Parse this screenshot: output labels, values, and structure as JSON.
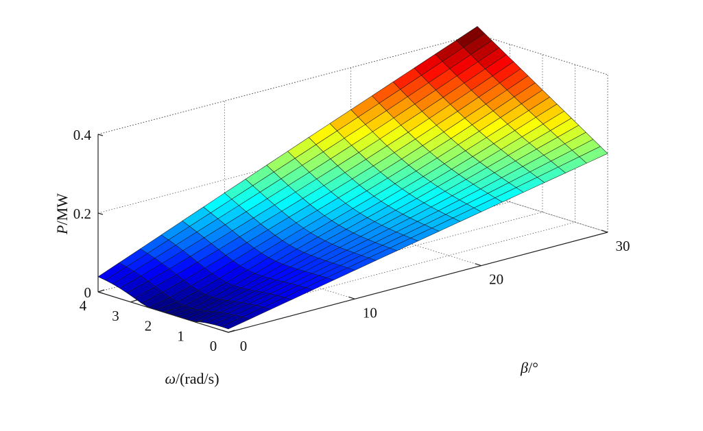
{
  "chart_data": {
    "type": "surface",
    "title": "",
    "xlabel": "ω/(rad/s)",
    "ylabel": "β/°",
    "zlabel": "P/MW",
    "xlim": [
      0,
      4
    ],
    "ylim": [
      0,
      30
    ],
    "zlim": [
      0,
      0.4
    ],
    "x_ticks": [
      0,
      1,
      2,
      3,
      4
    ],
    "y_ticks": [
      0,
      10,
      20,
      30
    ],
    "z_ticks": [
      0,
      0.2,
      0.4
    ],
    "grid": true,
    "colormap": "jet",
    "grid_size": [
      18,
      18
    ],
    "corner_values": {
      "omega_0_beta_0": 0.01,
      "omega_4_beta_0": 0.04,
      "omega_4_beta_30": 0.42,
      "omega_0_beta_30": 0.2
    }
  }
}
